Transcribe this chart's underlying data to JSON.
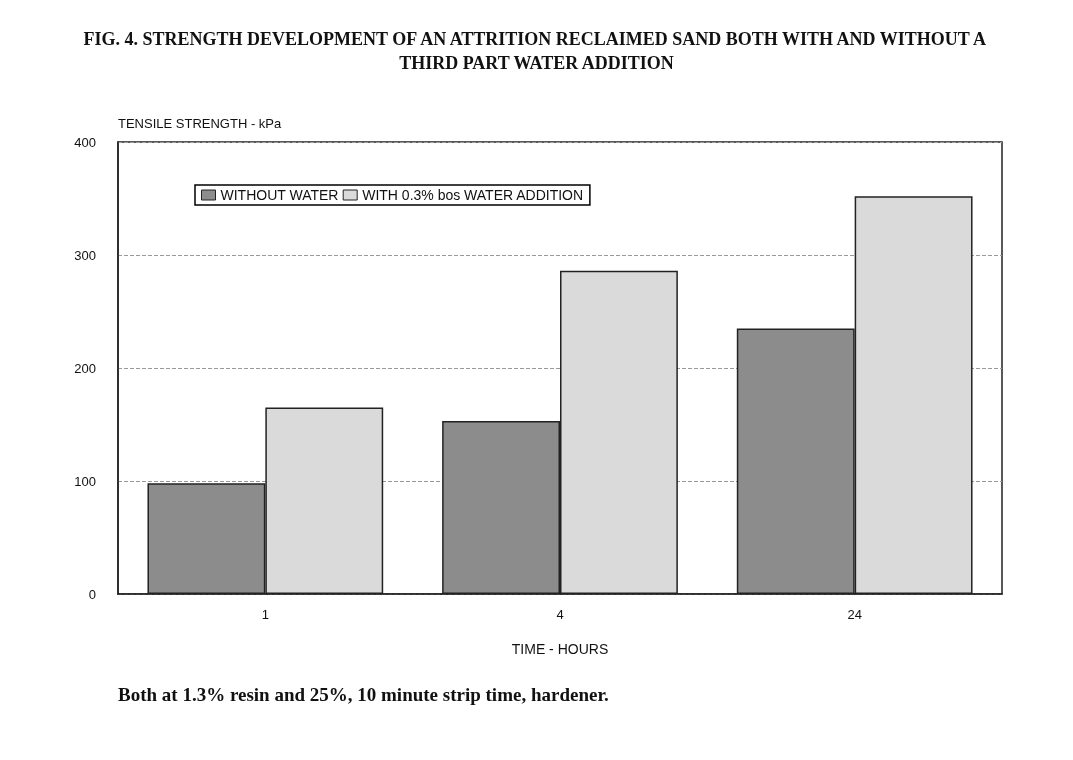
{
  "chart_data": {
    "type": "bar",
    "title": "FIG. 4. STRENGTH DEVELOPMENT OF AN ATTRITION RECLAIMED SAND BOTH WITH AND WITHOUT A THIRD PART WATER ADDITION",
    "xlabel": "TIME - HOURS",
    "ylabel": "TENSILE STRENGTH - kPa",
    "categories": [
      "1",
      "4",
      "24"
    ],
    "series": [
      {
        "name": "WITHOUT WATER",
        "color": "#8c8c8c",
        "values": [
          98,
          153,
          235
        ]
      },
      {
        "name": "WITH 0.3% bos WATER ADDITION",
        "color": "#dadada",
        "values": [
          165,
          286,
          352
        ]
      }
    ],
    "ylim": [
      0,
      400
    ],
    "yticks": [
      0,
      100,
      200,
      300,
      400
    ],
    "grid": "y",
    "legend": "top left",
    "annotations": [
      "Both at 1.3% resin and 25%, 10 minute strip time, hardener."
    ]
  }
}
